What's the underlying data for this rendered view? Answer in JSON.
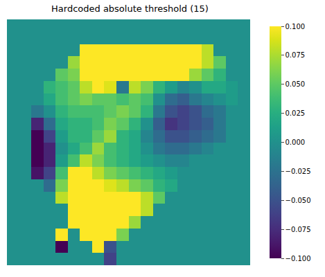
{
  "chart_data": {
    "type": "heatmap",
    "title": "Hardcoded absolute threshold (15)",
    "color": "Viridis",
    "tick_labels": false,
    "cells": [
      [
        0,
        0,
        0,
        0,
        0,
        0,
        0,
        0,
        0,
        0,
        0,
        0,
        0,
        0,
        0,
        0,
        0,
        0,
        0,
        0
      ],
      [
        0,
        0,
        0,
        0,
        0,
        0,
        0,
        0,
        0,
        0,
        0,
        0,
        0,
        0,
        0,
        0,
        0,
        0,
        0,
        0
      ],
      [
        0,
        0,
        0,
        0,
        0,
        0,
        0.1,
        0.1,
        0.1,
        0.1,
        0.1,
        0.1,
        0.1,
        0.1,
        0.1,
        0.1,
        0.08,
        0,
        0,
        0
      ],
      [
        0,
        0,
        0,
        0,
        0,
        0.07,
        0.1,
        0.1,
        0.1,
        0.1,
        0.1,
        0.1,
        0.1,
        0.1,
        0.1,
        0.1,
        0.08,
        0.05,
        0,
        0
      ],
      [
        0,
        0,
        0,
        0,
        0.05,
        0.06,
        0.1,
        0.1,
        0.1,
        0.1,
        0.1,
        0.1,
        0.1,
        0.1,
        0.1,
        0.07,
        0.05,
        0.03,
        0,
        0
      ],
      [
        0,
        0,
        0,
        0.03,
        0.04,
        0.05,
        0.08,
        0.1,
        0.09,
        -0.02,
        0.08,
        0.06,
        0.03,
        0.01,
        -0.01,
        0,
        0.02,
        0.02,
        0.01,
        0
      ],
      [
        0,
        0,
        0,
        0.02,
        0.04,
        0.05,
        0.06,
        0.05,
        0.05,
        0.04,
        0.05,
        0.04,
        0,
        -0.03,
        -0.04,
        -0.02,
        -0.01,
        0,
        0.01,
        0
      ],
      [
        0,
        0,
        -0.02,
        0,
        0.03,
        0.04,
        0.04,
        0.04,
        0.05,
        0.06,
        0.05,
        0.03,
        -0.02,
        -0.05,
        -0.06,
        -0.05,
        -0.03,
        -0.02,
        0,
        0
      ],
      [
        0,
        0,
        -0.08,
        -0.03,
        0.02,
        0.03,
        0.03,
        0.04,
        0.06,
        0.05,
        0.03,
        0,
        -0.04,
        -0.07,
        -0.06,
        -0.05,
        -0.04,
        -0.02,
        0,
        0
      ],
      [
        0,
        0,
        -0.1,
        -0.06,
        0.01,
        0.03,
        0.03,
        0.05,
        0.07,
        0.03,
        0.02,
        -0.01,
        -0.03,
        -0.05,
        -0.05,
        -0.04,
        -0.03,
        -0.02,
        0,
        0
      ],
      [
        0,
        0,
        -0.1,
        -0.08,
        0,
        0.02,
        0.04,
        0.07,
        0.04,
        0.03,
        0.02,
        0,
        -0.02,
        -0.03,
        -0.03,
        -0.02,
        -0.01,
        0,
        0,
        0
      ],
      [
        0,
        0,
        -0.1,
        -0.08,
        0.01,
        0.04,
        0.08,
        0.06,
        0.04,
        0.03,
        0.02,
        0.01,
        0,
        -0.01,
        -0.01,
        0,
        0,
        0,
        0,
        0
      ],
      [
        0,
        0,
        -0.09,
        -0.06,
        0.04,
        0.1,
        0.1,
        0.08,
        0.06,
        0.05,
        0.04,
        0.03,
        0.02,
        0.01,
        0,
        0,
        0,
        0,
        0,
        0
      ],
      [
        0,
        0,
        0,
        -0.03,
        0.06,
        0.1,
        0.1,
        0.1,
        0.09,
        0.08,
        0.06,
        0.05,
        0.03,
        0.02,
        0,
        0,
        0,
        0,
        0,
        0
      ],
      [
        0,
        0,
        0,
        0,
        0.08,
        0.1,
        0.1,
        0.1,
        0.1,
        0.1,
        0.1,
        0.08,
        0.05,
        0,
        0,
        0,
        0,
        0,
        0,
        0
      ],
      [
        0,
        0,
        0,
        0,
        0,
        0.1,
        0.1,
        0.1,
        0.1,
        0.1,
        0.1,
        0.08,
        0,
        0,
        0,
        0,
        0,
        0,
        0,
        0
      ],
      [
        0,
        0,
        0,
        0,
        0,
        0.1,
        0.1,
        0.1,
        0.1,
        0.1,
        0.07,
        0,
        0,
        0,
        0,
        0,
        0,
        0,
        0,
        0
      ],
      [
        0,
        0,
        0,
        0,
        0.1,
        0,
        0.1,
        0.1,
        0.1,
        0.06,
        0,
        0,
        0,
        0,
        0,
        0,
        0,
        0,
        0,
        0
      ],
      [
        0,
        0,
        0,
        0,
        -0.1,
        0,
        0,
        0.1,
        -0.05,
        0,
        0,
        0,
        0,
        0,
        0,
        0,
        0,
        0,
        0,
        0
      ],
      [
        0,
        0,
        0,
        0,
        0,
        0,
        0,
        0,
        -0.06,
        0,
        0,
        0,
        0,
        0,
        0,
        0,
        0,
        0,
        0,
        0
      ]
    ],
    "colorbar_range": [
      -0.1,
      0.1
    ],
    "colorbar_ticks": [
      {
        "value": -0.1,
        "label": "−0.100"
      },
      {
        "value": -0.075,
        "label": "−0.075"
      },
      {
        "value": -0.05,
        "label": "−0.050"
      },
      {
        "value": -0.025,
        "label": "−0.025"
      },
      {
        "value": 0,
        "label": "0.000"
      },
      {
        "value": 0.025,
        "label": "0.025"
      },
      {
        "value": 0.05,
        "label": "0.050"
      },
      {
        "value": 0.075,
        "label": "0.075"
      },
      {
        "value": 0.1,
        "label": "0.100"
      }
    ]
  }
}
